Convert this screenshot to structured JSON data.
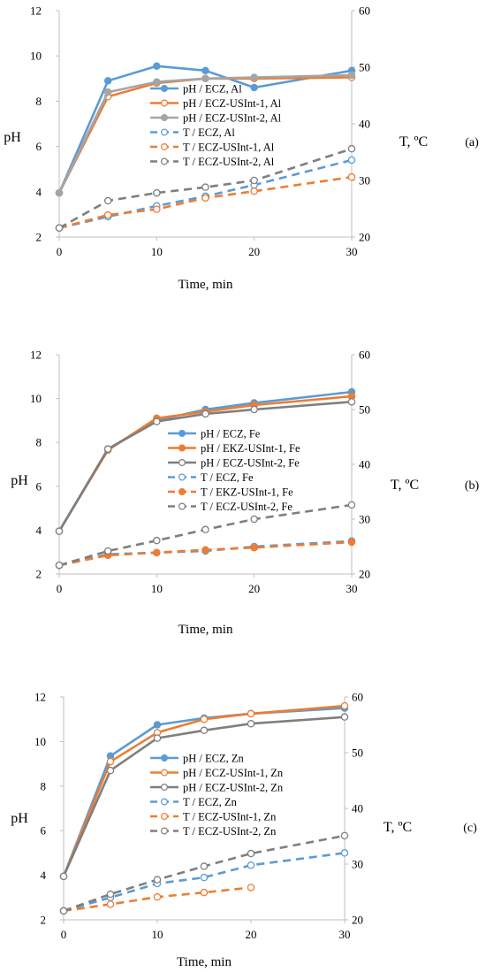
{
  "chart_data": [
    {
      "type": "line",
      "panel_label": "(a)",
      "xlabel": "Time, min",
      "ylabel": "pH",
      "y2label": "T, ºC",
      "x_ticks": [
        "0",
        "10",
        "20",
        "30"
      ],
      "y_ticks": [
        "2",
        "4",
        "6",
        "8",
        "10",
        "12"
      ],
      "y2_ticks": [
        "20",
        "30",
        "40",
        "50",
        "60"
      ],
      "xlim": [
        0,
        30
      ],
      "ylim": [
        2,
        12
      ],
      "y2lim": [
        20,
        60
      ],
      "x": [
        0,
        5,
        10,
        15,
        20,
        30
      ],
      "series": [
        {
          "name": "pH / ECZ, Al",
          "axis": "left",
          "style": "solid",
          "marker": "filled",
          "color": "#5b9bd5",
          "values": [
            3.95,
            8.9,
            9.55,
            9.35,
            8.6,
            9.35
          ]
        },
        {
          "name": "pH / ECZ-USInt-1, Al",
          "axis": "left",
          "style": "solid",
          "marker": "open",
          "color": "#ed7d31",
          "values": [
            3.95,
            8.2,
            8.8,
            9.0,
            9.0,
            9.05
          ]
        },
        {
          "name": "pH / ECZ-USInt-2, Al",
          "axis": "left",
          "style": "solid",
          "marker": "filled",
          "color": "#a5a5a5",
          "values": [
            3.95,
            8.4,
            8.85,
            9.0,
            9.05,
            9.15
          ]
        },
        {
          "name": "T / ECZ, Al",
          "axis": "right",
          "style": "dashed",
          "marker": "open",
          "color": "#5b9bd5",
          "values": [
            21.6,
            23.6,
            25.5,
            27.2,
            29.2,
            33.6
          ]
        },
        {
          "name": "T / ECZ-USInt-1, Al",
          "axis": "right",
          "style": "dashed",
          "marker": "open",
          "color": "#ed7d31",
          "values": [
            21.6,
            23.9,
            24.9,
            26.9,
            28.1,
            30.6
          ]
        },
        {
          "name": "T / ECZ-USInt-2, Al",
          "axis": "right",
          "style": "dashed",
          "marker": "open",
          "color": "#7f7f7f",
          "values": [
            21.6,
            26.4,
            27.8,
            28.8,
            30.0,
            35.6
          ]
        }
      ],
      "grid": false,
      "legend_position": "right"
    },
    {
      "type": "line",
      "panel_label": "(b)",
      "xlabel": "Time, min",
      "ylabel": "pH",
      "y2label": "T, ºC",
      "x_ticks": [
        "0",
        "10",
        "20",
        "30"
      ],
      "y_ticks": [
        "2",
        "4",
        "6",
        "8",
        "10",
        "12"
      ],
      "y2_ticks": [
        "20",
        "30",
        "40",
        "50",
        "60"
      ],
      "xlim": [
        0,
        30
      ],
      "ylim": [
        2,
        12
      ],
      "y2lim": [
        20,
        60
      ],
      "x": [
        0,
        5,
        10,
        15,
        20,
        30
      ],
      "series": [
        {
          "name": "pH / ECZ, Fe",
          "axis": "left",
          "style": "solid",
          "marker": "filled",
          "color": "#5b9bd5",
          "values": [
            3.95,
            7.7,
            9.0,
            9.5,
            9.8,
            10.3
          ]
        },
        {
          "name": "pH / EKZ-USInt-1, Fe",
          "axis": "left",
          "style": "solid",
          "marker": "filled",
          "color": "#ed7d31",
          "values": [
            3.95,
            7.65,
            9.1,
            9.4,
            9.7,
            10.1
          ]
        },
        {
          "name": "pH / ECZ-USInt-2, Fe",
          "axis": "left",
          "style": "solid",
          "marker": "open",
          "color": "#7f7f7f",
          "values": [
            3.95,
            7.7,
            8.95,
            9.3,
            9.5,
            9.85
          ]
        },
        {
          "name": "T / ECZ, Fe",
          "axis": "right",
          "style": "dashed",
          "marker": "open",
          "color": "#5b9bd5",
          "values": [
            21.6,
            23.6,
            23.9,
            24.2,
            25.0,
            26.0
          ]
        },
        {
          "name": "T / EKZ-USInt-1, Fe",
          "axis": "right",
          "style": "dashed",
          "marker": "filled",
          "color": "#ed7d31",
          "values": [
            21.6,
            23.4,
            23.9,
            24.4,
            24.8,
            25.8
          ]
        },
        {
          "name": "T / ECZ-USInt-2, Fe",
          "axis": "right",
          "style": "dashed",
          "marker": "open",
          "color": "#7f7f7f",
          "values": [
            21.6,
            24.2,
            26.1,
            28.1,
            30.0,
            32.6
          ]
        }
      ],
      "grid": false,
      "legend_position": "right"
    },
    {
      "type": "line",
      "panel_label": "(c)",
      "xlabel": "Time, min",
      "ylabel": "pH",
      "y2label": "T, ºC",
      "x_ticks": [
        "0",
        "10",
        "20",
        "30"
      ],
      "y_ticks": [
        "2",
        "4",
        "6",
        "8",
        "10",
        "12"
      ],
      "y2_ticks": [
        "20",
        "30",
        "40",
        "50",
        "60"
      ],
      "xlim": [
        0,
        30
      ],
      "ylim": [
        2,
        12
      ],
      "y2lim": [
        20,
        60
      ],
      "x": [
        0,
        5,
        10,
        15,
        20,
        30
      ],
      "series": [
        {
          "name": "pH / ECZ, Zn",
          "axis": "left",
          "style": "solid",
          "marker": "filled",
          "color": "#5b9bd5",
          "values": [
            3.95,
            9.35,
            10.75,
            11.05,
            11.25,
            11.5
          ]
        },
        {
          "name": "pH / ECZ-USInt-1, Zn",
          "axis": "left",
          "style": "solid",
          "marker": "open",
          "color": "#ed7d31",
          "values": [
            3.95,
            9.1,
            10.4,
            11.0,
            11.25,
            11.6
          ]
        },
        {
          "name": "pH / ECZ-USInt-2, Zn",
          "axis": "left",
          "style": "solid",
          "marker": "open",
          "color": "#7f7f7f",
          "values": [
            3.95,
            8.7,
            10.15,
            10.5,
            10.8,
            11.1
          ]
        },
        {
          "name": "T / ECZ, Zn",
          "axis": "right",
          "style": "dashed",
          "marker": "open",
          "color": "#5b9bd5",
          "values": [
            21.6,
            24.0,
            26.5,
            27.6,
            29.8,
            32.0
          ]
        },
        {
          "name": "T / ECZ-USInt-1, Zn",
          "axis": "right",
          "style": "dashed",
          "marker": "open",
          "color": "#ed7d31",
          "values": [
            21.6,
            22.8,
            24.1,
            24.9,
            25.8,
            null
          ]
        },
        {
          "name": "T / ECZ-USInt-2, Zn",
          "axis": "right",
          "style": "dashed",
          "marker": "open",
          "color": "#7f7f7f",
          "values": [
            21.6,
            24.6,
            27.2,
            29.6,
            31.9,
            35.1
          ]
        }
      ],
      "grid": false,
      "legend_position": "right"
    }
  ]
}
